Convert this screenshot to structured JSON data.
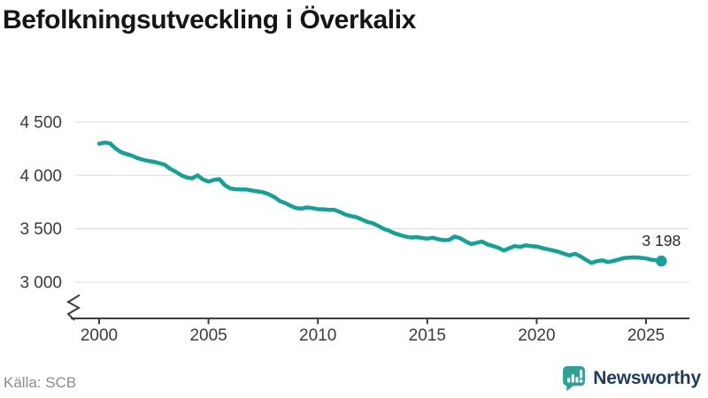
{
  "header": {
    "title": "Befolkningsutveckling i Överkalix"
  },
  "chart_data": {
    "type": "line",
    "title": "Befolkningsutveckling i Överkalix",
    "xlabel": "",
    "ylabel": "",
    "x_ticks": [
      2000,
      2005,
      2010,
      2015,
      2020,
      2025
    ],
    "y_ticks": [
      {
        "value": 4500,
        "label": "4 500"
      },
      {
        "value": 4000,
        "label": "4 000"
      },
      {
        "value": 3500,
        "label": "3 500"
      },
      {
        "value": 3000,
        "label": "3 000"
      }
    ],
    "xlim": [
      2000,
      2025.7
    ],
    "ylim": [
      2950,
      4560
    ],
    "grid": "horizontal-only",
    "y_axis_break": true,
    "legend": "none",
    "end_label": "3 198",
    "series": [
      {
        "name": "Befolkning i Överkalix",
        "color": "#16a096",
        "points": [
          [
            2000,
            4297
          ],
          [
            2000.25,
            4308
          ],
          [
            2000.5,
            4300
          ],
          [
            2000.75,
            4252
          ],
          [
            2001,
            4218
          ],
          [
            2001.25,
            4200
          ],
          [
            2001.5,
            4185
          ],
          [
            2001.75,
            4162
          ],
          [
            2002,
            4148
          ],
          [
            2002.25,
            4135
          ],
          [
            2002.5,
            4128
          ],
          [
            2002.75,
            4115
          ],
          [
            2003,
            4100
          ],
          [
            2003.25,
            4062
          ],
          [
            2003.5,
            4035
          ],
          [
            2003.75,
            4002
          ],
          [
            2004,
            3980
          ],
          [
            2004.25,
            3972
          ],
          [
            2004.5,
            4000
          ],
          [
            2004.75,
            3962
          ],
          [
            2005,
            3942
          ],
          [
            2005.25,
            3958
          ],
          [
            2005.5,
            3965
          ],
          [
            2005.75,
            3908
          ],
          [
            2006,
            3878
          ],
          [
            2006.25,
            3870
          ],
          [
            2006.5,
            3868
          ],
          [
            2006.75,
            3868
          ],
          [
            2007,
            3858
          ],
          [
            2007.25,
            3850
          ],
          [
            2007.5,
            3842
          ],
          [
            2007.75,
            3824
          ],
          [
            2008,
            3798
          ],
          [
            2008.25,
            3762
          ],
          [
            2008.5,
            3742
          ],
          [
            2008.75,
            3716
          ],
          [
            2009,
            3694
          ],
          [
            2009.25,
            3689
          ],
          [
            2009.5,
            3700
          ],
          [
            2009.75,
            3694
          ],
          [
            2010,
            3684
          ],
          [
            2010.25,
            3683
          ],
          [
            2010.5,
            3678
          ],
          [
            2010.75,
            3678
          ],
          [
            2011,
            3658
          ],
          [
            2011.25,
            3634
          ],
          [
            2011.5,
            3620
          ],
          [
            2011.75,
            3609
          ],
          [
            2012,
            3588
          ],
          [
            2012.25,
            3565
          ],
          [
            2012.5,
            3553
          ],
          [
            2012.75,
            3528
          ],
          [
            2013,
            3500
          ],
          [
            2013.25,
            3482
          ],
          [
            2013.5,
            3458
          ],
          [
            2013.75,
            3442
          ],
          [
            2014,
            3428
          ],
          [
            2014.25,
            3418
          ],
          [
            2014.5,
            3422
          ],
          [
            2014.75,
            3414
          ],
          [
            2015,
            3408
          ],
          [
            2015.25,
            3416
          ],
          [
            2015.5,
            3402
          ],
          [
            2015.75,
            3394
          ],
          [
            2016,
            3396
          ],
          [
            2016.25,
            3428
          ],
          [
            2016.5,
            3412
          ],
          [
            2016.75,
            3382
          ],
          [
            2017,
            3356
          ],
          [
            2017.25,
            3368
          ],
          [
            2017.5,
            3380
          ],
          [
            2017.75,
            3354
          ],
          [
            2018,
            3338
          ],
          [
            2018.25,
            3322
          ],
          [
            2018.5,
            3296
          ],
          [
            2018.75,
            3318
          ],
          [
            2019,
            3338
          ],
          [
            2019.25,
            3330
          ],
          [
            2019.5,
            3345
          ],
          [
            2019.75,
            3338
          ],
          [
            2020,
            3334
          ],
          [
            2020.25,
            3320
          ],
          [
            2020.5,
            3308
          ],
          [
            2020.75,
            3297
          ],
          [
            2021,
            3284
          ],
          [
            2021.25,
            3266
          ],
          [
            2021.5,
            3250
          ],
          [
            2021.75,
            3266
          ],
          [
            2022,
            3242
          ],
          [
            2022.25,
            3210
          ],
          [
            2022.5,
            3180
          ],
          [
            2022.75,
            3196
          ],
          [
            2023,
            3205
          ],
          [
            2023.25,
            3188
          ],
          [
            2023.5,
            3198
          ],
          [
            2023.75,
            3212
          ],
          [
            2024,
            3226
          ],
          [
            2024.25,
            3230
          ],
          [
            2024.5,
            3232
          ],
          [
            2024.75,
            3228
          ],
          [
            2025,
            3222
          ],
          [
            2025.25,
            3210
          ],
          [
            2025.5,
            3204
          ],
          [
            2025.7,
            3198
          ]
        ]
      }
    ]
  },
  "footer": {
    "source": "Källa: SCB",
    "brand_name": "Newsworthy"
  },
  "colors": {
    "line": "#16a096",
    "logo_teal": "#2fa093",
    "logo_navy": "#1d3c5e",
    "gridline": "#e4e4e4",
    "axis": "#3d3d3d",
    "tick_text": "#3b3b3b",
    "value_text": "#262626",
    "title_text": "#151515",
    "source_text": "#8b8b8b"
  }
}
